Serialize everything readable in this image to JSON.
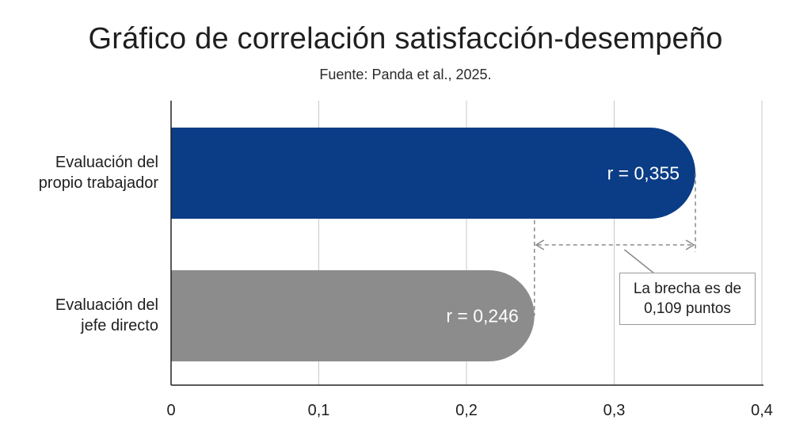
{
  "chart_data": {
    "type": "bar",
    "orientation": "horizontal",
    "title": "Gráfico de correlación satisfacción-desempeño",
    "subtitle": "Fuente: Panda et al., 2025.",
    "categories": [
      {
        "lines": [
          "Evaluación del",
          "propio trabajador"
        ]
      },
      {
        "lines": [
          "Evaluación del",
          "jefe directo"
        ]
      }
    ],
    "values": [
      0.355,
      0.246
    ],
    "value_labels": [
      "r = 0,355",
      "r = 0,246"
    ],
    "colors": [
      "#0b3d86",
      "#8c8c8c"
    ],
    "xlim": [
      0,
      0.4
    ],
    "xticks": [
      0,
      0.1,
      0.2,
      0.3,
      0.4
    ],
    "xtick_labels": [
      "0",
      "0,1",
      "0,2",
      "0,3",
      "0,4"
    ],
    "grid": true,
    "annotation": {
      "from_value": 0.246,
      "to_value": 0.355,
      "lines": [
        "La brecha es de",
        "0,109 puntos"
      ]
    }
  }
}
